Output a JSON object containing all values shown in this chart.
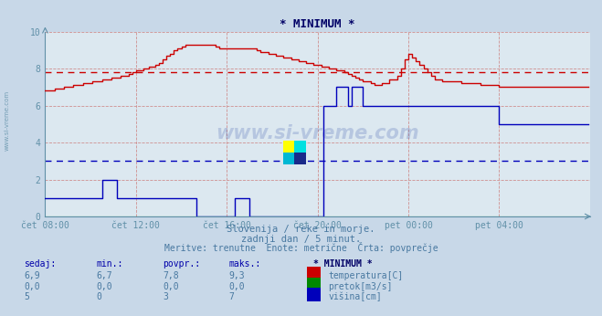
{
  "title": "* MINIMUM *",
  "title_color": "#000066",
  "bg_color": "#c8d8e8",
  "plot_bg_color": "#dce8f0",
  "grid_color": "#b0c0d0",
  "axis_color": "#6090a8",
  "text_color": "#4878a0",
  "ylim": [
    0,
    10
  ],
  "yticks": [
    0,
    2,
    4,
    6,
    8,
    10
  ],
  "xmin": 0,
  "xmax": 288,
  "xtick_labels": [
    "čet 08:00",
    "čet 12:00",
    "čet 16:00",
    "čet 20:00",
    "pet 00:00",
    "pet 04:00"
  ],
  "xtick_positions": [
    0,
    48,
    96,
    144,
    192,
    240
  ],
  "watermark": "www.si-vreme.com",
  "subtitle1": "Slovenija / reke in morje.",
  "subtitle2": "zadnji dan / 5 minut.",
  "subtitle3": "Meritve: trenutne  Enote: metrične  Črta: povprečje",
  "table_headers": [
    "sedaj:",
    "min.:",
    "povpr.:",
    "maks.:",
    "* MINIMUM *"
  ],
  "table_rows": [
    [
      "6,9",
      "6,7",
      "7,8",
      "9,3",
      "temperatura[C]",
      "#cc0000"
    ],
    [
      "0,0",
      "0,0",
      "0,0",
      "0,0",
      "pretok[m3/s]",
      "#008800"
    ],
    [
      "5",
      "0",
      "3",
      "7",
      "višina[cm]",
      "#0000bb"
    ]
  ],
  "temp_avg_line": 7.8,
  "temp_avg_color": "#cc0000",
  "height_avg_line": 3.0,
  "height_avg_color": "#0000bb",
  "temp_color": "#cc0000",
  "height_color": "#0000bb",
  "pretok_color": "#008800"
}
